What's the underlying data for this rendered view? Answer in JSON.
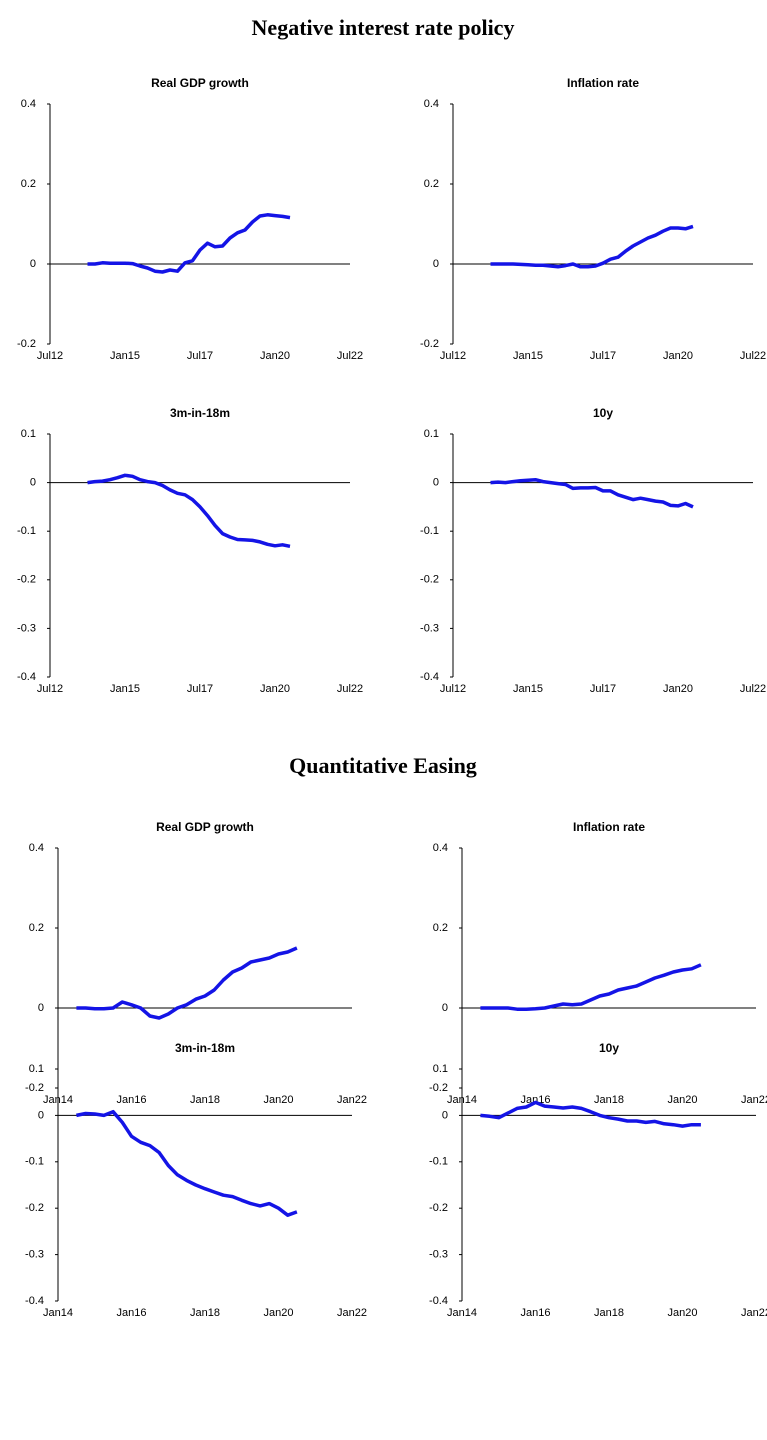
{
  "section_titles": [
    "Negative interest rate policy",
    "Quantitative Easing"
  ],
  "chart_data": [
    {
      "type": "line",
      "title": "Real GDP growth",
      "color": "#1414e6",
      "x": [
        "2013-10",
        "2014-01",
        "2014-04",
        "2014-07",
        "2014-10",
        "2015-01",
        "2015-04",
        "2015-07",
        "2015-10",
        "2016-01",
        "2016-04",
        "2016-07",
        "2016-10",
        "2017-01",
        "2017-04",
        "2017-07",
        "2017-10",
        "2018-01",
        "2018-04",
        "2018-07",
        "2018-10",
        "2019-01",
        "2019-04",
        "2019-07",
        "2019-10",
        "2020-01",
        "2020-04",
        "2020-07"
      ],
      "values": [
        0,
        0,
        0.003,
        0.002,
        0.002,
        0.002,
        0.001,
        -0.005,
        -0.01,
        -0.018,
        -0.02,
        -0.015,
        -0.018,
        0.003,
        0.008,
        0.035,
        0.052,
        0.043,
        0.045,
        0.065,
        0.078,
        0.085,
        0.105,
        0.12,
        0.123,
        0.121,
        0.119,
        0.116
      ],
      "xlim": [
        "2012-07",
        "2022-07"
      ],
      "xticks": [
        {
          "value": "2012-07",
          "label": "Jul12"
        },
        {
          "value": "2015-01",
          "label": "Jan15"
        },
        {
          "value": "2017-07",
          "label": "Jul17"
        },
        {
          "value": "2020-01",
          "label": "Jan20"
        },
        {
          "value": "2022-07",
          "label": "Jul22"
        }
      ],
      "ylim": [
        -0.2,
        0.4
      ],
      "yticks": [
        -0.2,
        0,
        0.2,
        0.4
      ]
    },
    {
      "type": "line",
      "title": "Inflation rate",
      "color": "#1414e6",
      "x": [
        "2013-10",
        "2014-01",
        "2014-04",
        "2014-07",
        "2014-10",
        "2015-01",
        "2015-04",
        "2015-07",
        "2015-10",
        "2016-01",
        "2016-04",
        "2016-07",
        "2016-10",
        "2017-01",
        "2017-04",
        "2017-07",
        "2017-10",
        "2018-01",
        "2018-04",
        "2018-07",
        "2018-10",
        "2019-01",
        "2019-04",
        "2019-07",
        "2019-10",
        "2020-01",
        "2020-04",
        "2020-07"
      ],
      "values": [
        0,
        0,
        0,
        0,
        -0.001,
        -0.002,
        -0.003,
        -0.003,
        -0.005,
        -0.007,
        -0.004,
        0,
        -0.007,
        -0.007,
        -0.005,
        0.002,
        0.012,
        0.017,
        0.032,
        0.045,
        0.055,
        0.065,
        0.072,
        0.082,
        0.09,
        0.09,
        0.088,
        0.094
      ],
      "xlim": [
        "2012-07",
        "2022-07"
      ],
      "xticks": [
        {
          "value": "2012-07",
          "label": "Jul12"
        },
        {
          "value": "2015-01",
          "label": "Jan15"
        },
        {
          "value": "2017-07",
          "label": "Jul17"
        },
        {
          "value": "2020-01",
          "label": "Jan20"
        },
        {
          "value": "2022-07",
          "label": "Jul22"
        }
      ],
      "ylim": [
        -0.2,
        0.4
      ],
      "yticks": [
        -0.2,
        0,
        0.2,
        0.4
      ]
    },
    {
      "type": "line",
      "title": "3m-in-18m",
      "color": "#1414e6",
      "x": [
        "2013-10",
        "2014-01",
        "2014-04",
        "2014-07",
        "2014-10",
        "2015-01",
        "2015-04",
        "2015-07",
        "2015-10",
        "2016-01",
        "2016-04",
        "2016-07",
        "2016-10",
        "2017-01",
        "2017-04",
        "2017-07",
        "2017-10",
        "2018-01",
        "2018-04",
        "2018-07",
        "2018-10",
        "2019-01",
        "2019-04",
        "2019-07",
        "2019-10",
        "2020-01",
        "2020-04",
        "2020-07"
      ],
      "values": [
        0,
        0.002,
        0.003,
        0.006,
        0.01,
        0.015,
        0.013,
        0.006,
        0.002,
        0,
        -0.006,
        -0.015,
        -0.022,
        -0.025,
        -0.035,
        -0.05,
        -0.068,
        -0.088,
        -0.105,
        -0.112,
        -0.117,
        -0.118,
        -0.119,
        -0.122,
        -0.127,
        -0.13,
        -0.128,
        -0.131
      ],
      "xlim": [
        "2012-07",
        "2022-07"
      ],
      "xticks": [
        {
          "value": "2012-07",
          "label": "Jul12"
        },
        {
          "value": "2015-01",
          "label": "Jan15"
        },
        {
          "value": "2017-07",
          "label": "Jul17"
        },
        {
          "value": "2020-01",
          "label": "Jan20"
        },
        {
          "value": "2022-07",
          "label": "Jul22"
        }
      ],
      "ylim": [
        -0.4,
        0.1
      ],
      "yticks": [
        -0.4,
        -0.3,
        -0.2,
        -0.1,
        0,
        0.1
      ]
    },
    {
      "type": "line",
      "title": "10y",
      "color": "#1414e6",
      "x": [
        "2013-10",
        "2014-01",
        "2014-04",
        "2014-07",
        "2014-10",
        "2015-01",
        "2015-04",
        "2015-07",
        "2015-10",
        "2016-01",
        "2016-04",
        "2016-07",
        "2016-10",
        "2017-01",
        "2017-04",
        "2017-07",
        "2017-10",
        "2018-01",
        "2018-04",
        "2018-07",
        "2018-10",
        "2019-01",
        "2019-04",
        "2019-07",
        "2019-10",
        "2020-01",
        "2020-04",
        "2020-07"
      ],
      "values": [
        0,
        0.001,
        0,
        0.002,
        0.004,
        0.005,
        0.006,
        0.002,
        0,
        -0.002,
        -0.004,
        -0.012,
        -0.011,
        -0.011,
        -0.01,
        -0.017,
        -0.017,
        -0.025,
        -0.03,
        -0.035,
        -0.032,
        -0.035,
        -0.038,
        -0.04,
        -0.047,
        -0.048,
        -0.043,
        -0.05
      ],
      "xlim": [
        "2012-07",
        "2022-07"
      ],
      "xticks": [
        {
          "value": "2012-07",
          "label": "Jul12"
        },
        {
          "value": "2015-01",
          "label": "Jan15"
        },
        {
          "value": "2017-07",
          "label": "Jul17"
        },
        {
          "value": "2020-01",
          "label": "Jan20"
        },
        {
          "value": "2022-07",
          "label": "Jul22"
        }
      ],
      "ylim": [
        -0.4,
        0.1
      ],
      "yticks": [
        -0.4,
        -0.3,
        -0.2,
        -0.1,
        0,
        0.1
      ]
    },
    {
      "type": "line",
      "title": "Real GDP growth",
      "color": "#1414e6",
      "x": [
        "2014-07",
        "2014-10",
        "2015-01",
        "2015-04",
        "2015-07",
        "2015-10",
        "2016-01",
        "2016-04",
        "2016-07",
        "2016-10",
        "2017-01",
        "2017-04",
        "2017-07",
        "2017-10",
        "2018-01",
        "2018-04",
        "2018-07",
        "2018-10",
        "2019-01",
        "2019-04",
        "2019-07",
        "2019-10",
        "2020-01",
        "2020-04",
        "2020-07"
      ],
      "values": [
        0,
        0,
        -0.002,
        -0.002,
        0,
        0.015,
        0.008,
        0,
        -0.02,
        -0.025,
        -0.015,
        0,
        0.008,
        0.022,
        0.03,
        0.045,
        0.07,
        0.09,
        0.1,
        0.115,
        0.12,
        0.125,
        0.135,
        0.14,
        0.15
      ],
      "xlim": [
        "2014-01",
        "2022-01"
      ],
      "xticks": [
        {
          "value": "2014-01",
          "label": "Jan14"
        },
        {
          "value": "2016-01",
          "label": "Jan16"
        },
        {
          "value": "2018-01",
          "label": "Jan18"
        },
        {
          "value": "2020-01",
          "label": "Jan20"
        },
        {
          "value": "2022-01",
          "label": "Jan22"
        }
      ],
      "ylim": [
        -0.2,
        0.4
      ],
      "yticks": [
        -0.2,
        0,
        0.2,
        0.4
      ]
    },
    {
      "type": "line",
      "title": "Inflation rate",
      "color": "#1414e6",
      "x": [
        "2014-07",
        "2014-10",
        "2015-01",
        "2015-04",
        "2015-07",
        "2015-10",
        "2016-01",
        "2016-04",
        "2016-07",
        "2016-10",
        "2017-01",
        "2017-04",
        "2017-07",
        "2017-10",
        "2018-01",
        "2018-04",
        "2018-07",
        "2018-10",
        "2019-01",
        "2019-04",
        "2019-07",
        "2019-10",
        "2020-01",
        "2020-04",
        "2020-07"
      ],
      "values": [
        0,
        0,
        0,
        0,
        -0.003,
        -0.003,
        -0.002,
        0,
        0.005,
        0.01,
        0.008,
        0.01,
        0.02,
        0.03,
        0.035,
        0.045,
        0.05,
        0.055,
        0.065,
        0.075,
        0.082,
        0.09,
        0.095,
        0.098,
        0.108
      ],
      "xlim": [
        "2014-01",
        "2022-01"
      ],
      "xticks": [
        {
          "value": "2014-01",
          "label": "Jan14"
        },
        {
          "value": "2016-01",
          "label": "Jan16"
        },
        {
          "value": "2018-01",
          "label": "Jan18"
        },
        {
          "value": "2020-01",
          "label": "Jan20"
        },
        {
          "value": "2022-01",
          "label": "Jan22"
        }
      ],
      "ylim": [
        -0.2,
        0.4
      ],
      "yticks": [
        -0.2,
        0,
        0.2,
        0.4
      ]
    },
    {
      "type": "line",
      "title": "3m-in-18m",
      "color": "#1414e6",
      "x": [
        "2014-07",
        "2014-10",
        "2015-01",
        "2015-04",
        "2015-07",
        "2015-10",
        "2016-01",
        "2016-04",
        "2016-07",
        "2016-10",
        "2017-01",
        "2017-04",
        "2017-07",
        "2017-10",
        "2018-01",
        "2018-04",
        "2018-07",
        "2018-10",
        "2019-01",
        "2019-04",
        "2019-07",
        "2019-10",
        "2020-01",
        "2020-04",
        "2020-07"
      ],
      "values": [
        0,
        0.004,
        0.003,
        0,
        0.008,
        -0.015,
        -0.045,
        -0.058,
        -0.065,
        -0.08,
        -0.108,
        -0.128,
        -0.14,
        -0.15,
        -0.158,
        -0.165,
        -0.172,
        -0.175,
        -0.183,
        -0.19,
        -0.195,
        -0.19,
        -0.2,
        -0.215,
        -0.208
      ],
      "xlim": [
        "2014-01",
        "2022-01"
      ],
      "xticks": [
        {
          "value": "2014-01",
          "label": "Jan14"
        },
        {
          "value": "2016-01",
          "label": "Jan16"
        },
        {
          "value": "2018-01",
          "label": "Jan18"
        },
        {
          "value": "2020-01",
          "label": "Jan20"
        },
        {
          "value": "2022-01",
          "label": "Jan22"
        }
      ],
      "ylim": [
        -0.4,
        0.1
      ],
      "yticks": [
        -0.4,
        -0.3,
        -0.2,
        -0.1,
        0,
        0.1
      ]
    },
    {
      "type": "line",
      "title": "10y",
      "color": "#1414e6",
      "x": [
        "2014-07",
        "2014-10",
        "2015-01",
        "2015-04",
        "2015-07",
        "2015-10",
        "2016-01",
        "2016-04",
        "2016-07",
        "2016-10",
        "2017-01",
        "2017-04",
        "2017-07",
        "2017-10",
        "2018-01",
        "2018-04",
        "2018-07",
        "2018-10",
        "2019-01",
        "2019-04",
        "2019-07",
        "2019-10",
        "2020-01",
        "2020-04",
        "2020-07"
      ],
      "values": [
        0,
        -0.002,
        -0.005,
        0.005,
        0.015,
        0.018,
        0.028,
        0.02,
        0.018,
        0.016,
        0.018,
        0.015,
        0.008,
        0,
        -0.005,
        -0.008,
        -0.012,
        -0.012,
        -0.015,
        -0.013,
        -0.018,
        -0.02,
        -0.023,
        -0.02,
        -0.02
      ],
      "xlim": [
        "2014-01",
        "2022-01"
      ],
      "xticks": [
        {
          "value": "2014-01",
          "label": "Jan14"
        },
        {
          "value": "2016-01",
          "label": "Jan16"
        },
        {
          "value": "2018-01",
          "label": "Jan18"
        },
        {
          "value": "2020-01",
          "label": "Jan20"
        },
        {
          "value": "2022-01",
          "label": "Jan22"
        }
      ],
      "ylim": [
        -0.4,
        0.1
      ],
      "yticks": [
        -0.4,
        -0.3,
        -0.2,
        -0.1,
        0,
        0.1
      ]
    }
  ]
}
